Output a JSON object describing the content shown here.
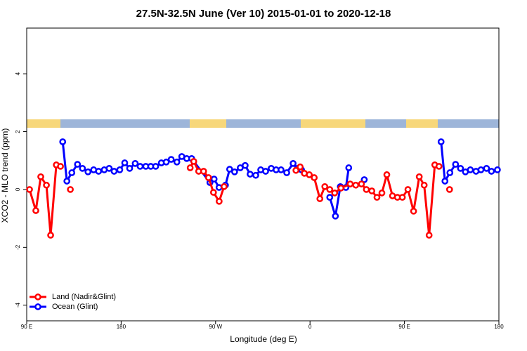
{
  "chart_data": {
    "type": "line",
    "title": "27.5N-32.5N June (Ver 10)   2015-01-01 to 2020-12-18",
    "x_label": "Longitude (deg E)",
    "y_label": "XCO2 - MLO trend (ppm)",
    "xlim": [
      90,
      540
    ],
    "ylim": [
      -4.54,
      5.58
    ],
    "xticks": [
      {
        "value": 90,
        "label": "90 E"
      },
      {
        "value": 180,
        "label": "180"
      },
      {
        "value": 270,
        "label": "90 W"
      },
      {
        "value": 360,
        "label": "0"
      },
      {
        "value": 450,
        "label": "90 E"
      },
      {
        "value": 540,
        "label": "180"
      }
    ],
    "yticks": [
      -4,
      -2,
      0,
      2,
      4
    ],
    "legend": "bottom-left",
    "series": [
      {
        "name": "Ocean (Glint)",
        "color": "#0000ff",
        "x": [
          124.3,
          128.3,
          133.0,
          138.4,
          143.1,
          148.4,
          153.8,
          158.5,
          163.9,
          168.6,
          173.3,
          178.7,
          183.4,
          188.1,
          193.4,
          198.1,
          203.5,
          208.2,
          212.9,
          218.3,
          223.0,
          227.7,
          233.1,
          237.8,
          242.5,
          247.2,
          264.6,
          268.6,
          273.3,
          279.4,
          283.4,
          288.1,
          293.5,
          298.2,
          302.9,
          308.3,
          313.0,
          317.7,
          323.0,
          327.7,
          332.4,
          337.8,
          343.9,
          347.9,
          351.9,
          null,
          378.8,
          384.2,
          388.9,
          394.2,
          396.9,
          null,
          411.7,
          null,
          484.9,
          488.6,
          493.3,
          498.7,
          503.4,
          508.1,
          512.8,
          518.2,
          522.9,
          528.2,
          532.9,
          538.6
        ],
        "values": [
          1.65,
          0.29,
          0.58,
          0.87,
          0.73,
          0.61,
          0.68,
          0.63,
          0.68,
          0.73,
          0.63,
          0.68,
          0.92,
          0.73,
          0.9,
          0.8,
          0.8,
          0.8,
          0.8,
          0.92,
          0.95,
          1.04,
          0.95,
          1.14,
          1.07,
          1.07,
          0.24,
          0.36,
          0.07,
          0.15,
          0.7,
          0.61,
          0.75,
          0.83,
          0.53,
          0.49,
          0.68,
          0.63,
          0.73,
          0.68,
          0.68,
          0.58,
          0.9,
          0.73,
          0.68,
          null,
          -0.27,
          -0.92,
          0.1,
          0.07,
          0.75,
          null,
          0.34,
          null,
          1.65,
          0.29,
          0.58,
          0.87,
          0.73,
          0.61,
          0.68,
          0.63,
          0.68,
          0.73,
          0.63,
          0.68
        ]
      },
      {
        "name": "Land (Nadir&Glint)",
        "color": "#ff0000",
        "x": [
          92.7,
          98.7,
          103.4,
          108.8,
          112.8,
          118.2,
          122.2,
          null,
          131.6,
          null,
          245.8,
          249.2,
          253.9,
          258.6,
          263.3,
          268.0,
          273.4,
          278.1,
          null,
          346.6,
          350.6,
          354.6,
          359.3,
          364.0,
          369.4,
          374.1,
          378.8,
          383.5,
          389.5,
          398.3,
          403.6,
          409.0,
          413.7,
          418.9,
          423.8,
          428.5,
          433.2,
          438.6,
          443.3,
          448.0,
          453.3,
          458.7,
          464.1,
          468.8,
          473.5,
          478.9,
          482.9,
          null,
          493.0
        ],
        "values": [
          0,
          -0.73,
          0.44,
          0.15,
          -1.58,
          0.85,
          0.8,
          null,
          0,
          null,
          0.75,
          0.97,
          0.63,
          0.63,
          0.41,
          -0.1,
          -0.41,
          0.1,
          null,
          0.66,
          0.78,
          0.56,
          0.51,
          0.41,
          -0.32,
          0.1,
          0,
          -0.12,
          0.05,
          0.19,
          0.15,
          0.19,
          0,
          -0.05,
          -0.27,
          -0.12,
          0.51,
          -0.22,
          -0.27,
          -0.27,
          0,
          -0.75,
          0.44,
          0.15,
          -1.58,
          0.85,
          0.8,
          null,
          0
        ]
      }
    ]
  }
}
